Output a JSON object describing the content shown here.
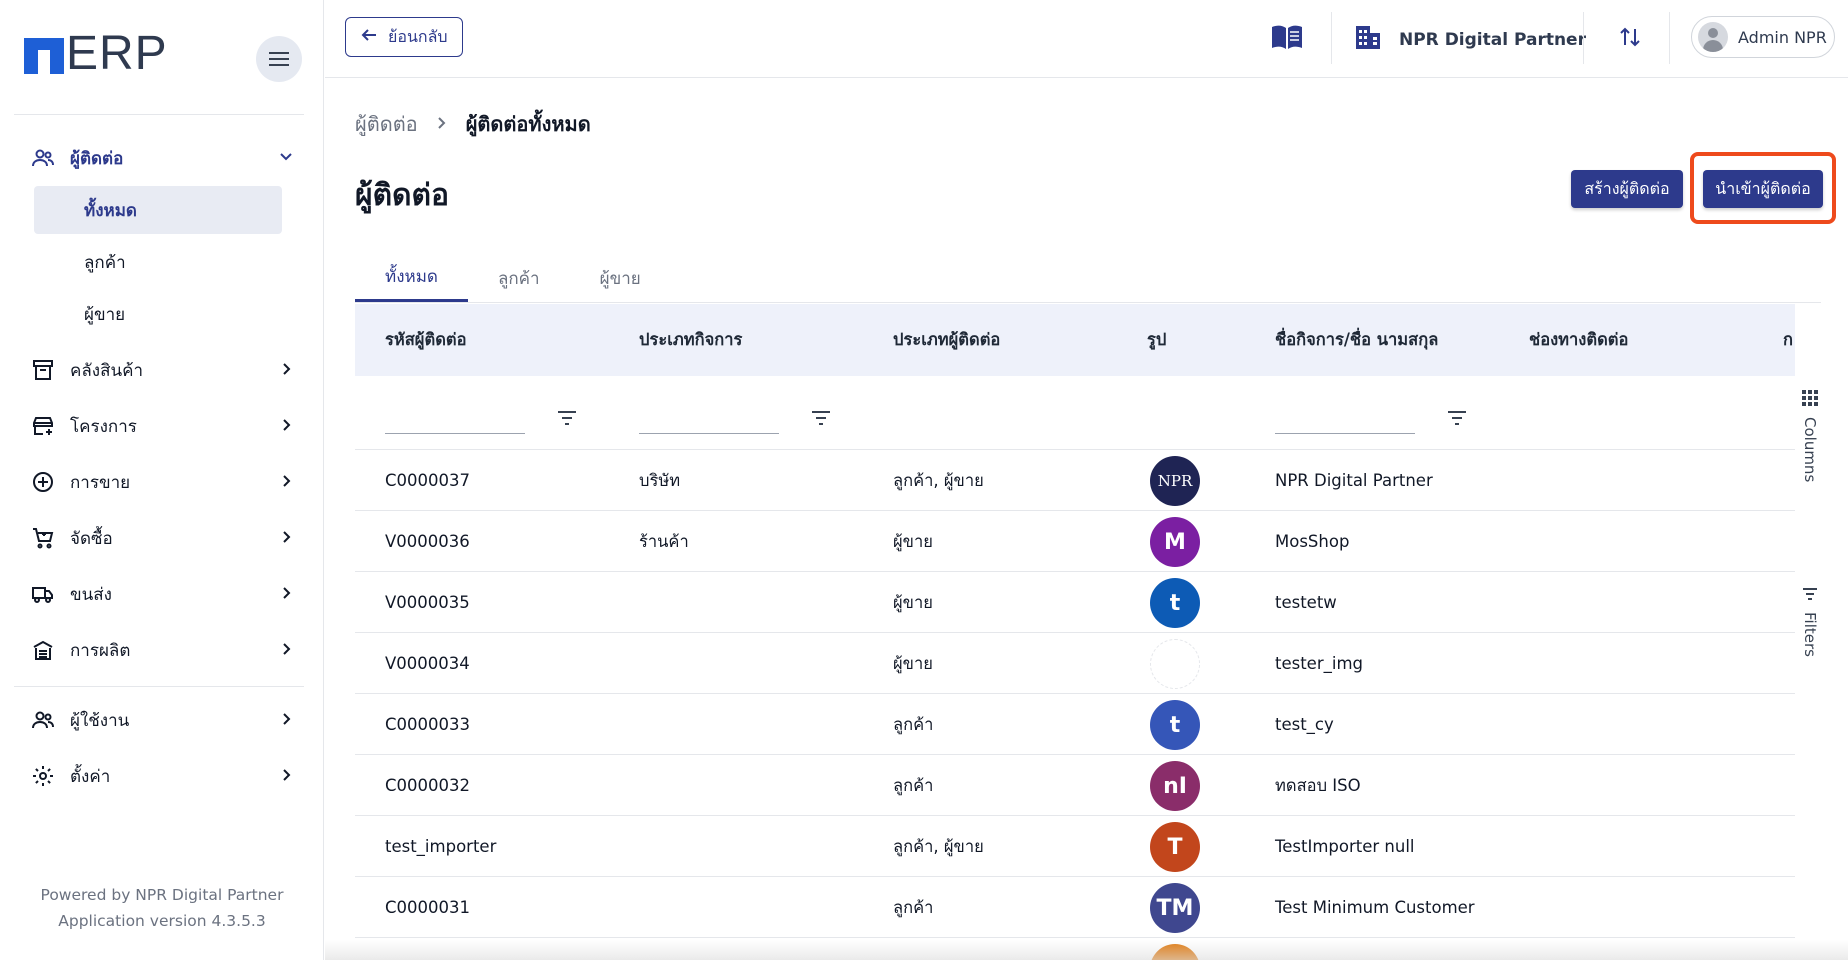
{
  "app": {
    "logo_text": "ERP"
  },
  "topbar": {
    "back_label": "ย้อนกลับ",
    "company_name": "NPR Digital Partner",
    "user_name": "Admin NPR"
  },
  "sidebar": {
    "items": [
      {
        "label": "ผู้ติดต่อ",
        "icon": "people-icon",
        "expanded": true
      },
      {
        "label": "คลังสินค้า",
        "icon": "archive-icon"
      },
      {
        "label": "โครงการ",
        "icon": "project-icon"
      },
      {
        "label": "การขาย",
        "icon": "plus-circle-icon"
      },
      {
        "label": "จัดซื้อ",
        "icon": "cart-icon"
      },
      {
        "label": "ขนส่ง",
        "icon": "truck-icon"
      },
      {
        "label": "การผลิต",
        "icon": "factory-icon"
      },
      {
        "label": "ผู้ใช้งาน",
        "icon": "users-icon"
      },
      {
        "label": "ตั้งค่า",
        "icon": "gear-icon"
      }
    ],
    "sub_items": [
      {
        "label": "ทั้งหมด",
        "active": true
      },
      {
        "label": "ลูกค้า"
      },
      {
        "label": "ผู้ขาย"
      }
    ],
    "powered_by": "Powered by NPR Digital Partner",
    "version": "Application version 4.3.5.3"
  },
  "breadcrumb": {
    "parent": "ผู้ติดต่อ",
    "current": "ผู้ติดต่อทั้งหมด"
  },
  "page": {
    "title": "ผู้ติดต่อ",
    "create_label": "สร้างผู้ติดต่อ",
    "import_label": "นำเข้าผู้ติดต่อ"
  },
  "tabs": [
    {
      "label": "ทั้งหมด",
      "active": true
    },
    {
      "label": "ลูกค้า"
    },
    {
      "label": "ผู้ขาย"
    }
  ],
  "table": {
    "columns": [
      "รหัสผู้ติดต่อ",
      "ประเภทกิจการ",
      "ประเภทผู้ติดต่อ",
      "รูป",
      "ชื่อกิจการ/ชื่อ นามสกุล",
      "ช่องทางติดต่อ",
      "ก"
    ],
    "rows": [
      {
        "code": "C0000037",
        "business_type": "บริษัท",
        "contact_type": "ลูกค้า, ผู้ขาย",
        "avatar_text": "NPR",
        "avatar_color": "#1f2454",
        "name": "NPR Digital Partner"
      },
      {
        "code": "V0000036",
        "business_type": "ร้านค้า",
        "contact_type": "ผู้ขาย",
        "avatar_text": "M",
        "avatar_color": "#7b1fa2",
        "name": "MosShop"
      },
      {
        "code": "V0000035",
        "business_type": "",
        "contact_type": "ผู้ขาย",
        "avatar_text": "t",
        "avatar_color": "#0d5bb5",
        "name": "testetw"
      },
      {
        "code": "V0000034",
        "business_type": "",
        "contact_type": "ผู้ขาย",
        "avatar_text": "",
        "avatar_color": "#ffffff",
        "name": "tester_img"
      },
      {
        "code": "C0000033",
        "business_type": "",
        "contact_type": "ลูกค้า",
        "avatar_text": "t",
        "avatar_color": "#3556b8",
        "name": "test_cy"
      },
      {
        "code": "C0000032",
        "business_type": "",
        "contact_type": "ลูกค้า",
        "avatar_text": "nI",
        "avatar_color": "#8a2d6a",
        "name": "ทดสอบ ISO"
      },
      {
        "code": "test_importer",
        "business_type": "",
        "contact_type": "ลูกค้า, ผู้ขาย",
        "avatar_text": "T",
        "avatar_color": "#c2461c",
        "name": "TestImporter null"
      },
      {
        "code": "C0000031",
        "business_type": "",
        "contact_type": "ลูกค้า",
        "avatar_text": "TM",
        "avatar_color": "#3f478f",
        "name": "Test Minimum Customer"
      },
      {
        "code": "",
        "business_type": "",
        "contact_type": "",
        "avatar_text": "",
        "avatar_color": "#e07b12",
        "name": ""
      }
    ]
  },
  "side_panel": {
    "columns_label": "Columns",
    "filters_label": "Filters"
  },
  "colors": {
    "primary": "#2d3a8c",
    "highlight": "#ee4a1c",
    "header_bg": "#eef1fa"
  }
}
